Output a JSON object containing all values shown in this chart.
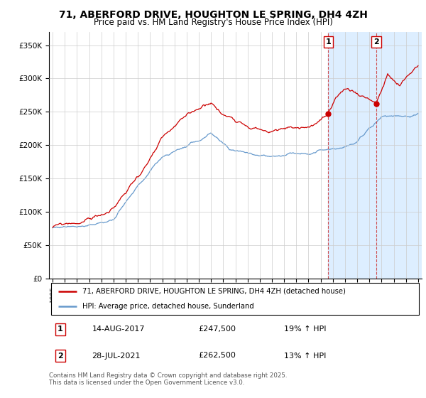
{
  "title": "71, ABERFORD DRIVE, HOUGHTON LE SPRING, DH4 4ZH",
  "subtitle": "Price paid vs. HM Land Registry's House Price Index (HPI)",
  "ylabel_ticks": [
    "£0",
    "£50K",
    "£100K",
    "£150K",
    "£200K",
    "£250K",
    "£300K",
    "£350K"
  ],
  "ytick_vals": [
    0,
    50000,
    100000,
    150000,
    200000,
    250000,
    300000,
    350000
  ],
  "ylim": [
    0,
    370000
  ],
  "legend_line1": "71, ABERFORD DRIVE, HOUGHTON LE SPRING, DH4 4ZH (detached house)",
  "legend_line2": "HPI: Average price, detached house, Sunderland",
  "annotation1_date": "14-AUG-2017",
  "annotation1_price": "£247,500",
  "annotation1_hpi": "19% ↑ HPI",
  "annotation2_date": "28-JUL-2021",
  "annotation2_price": "£262,500",
  "annotation2_hpi": "13% ↑ HPI",
  "footer": "Contains HM Land Registry data © Crown copyright and database right 2025.\nThis data is licensed under the Open Government Licence v3.0.",
  "line_color_red": "#cc0000",
  "line_color_blue": "#6699cc",
  "background_color": "#ffffff",
  "grid_color": "#cccccc",
  "shade_color": "#ddeeff",
  "marker1_price": 247500,
  "marker2_price": 262500,
  "marker1_year": 2017.62,
  "marker2_year": 2021.57
}
